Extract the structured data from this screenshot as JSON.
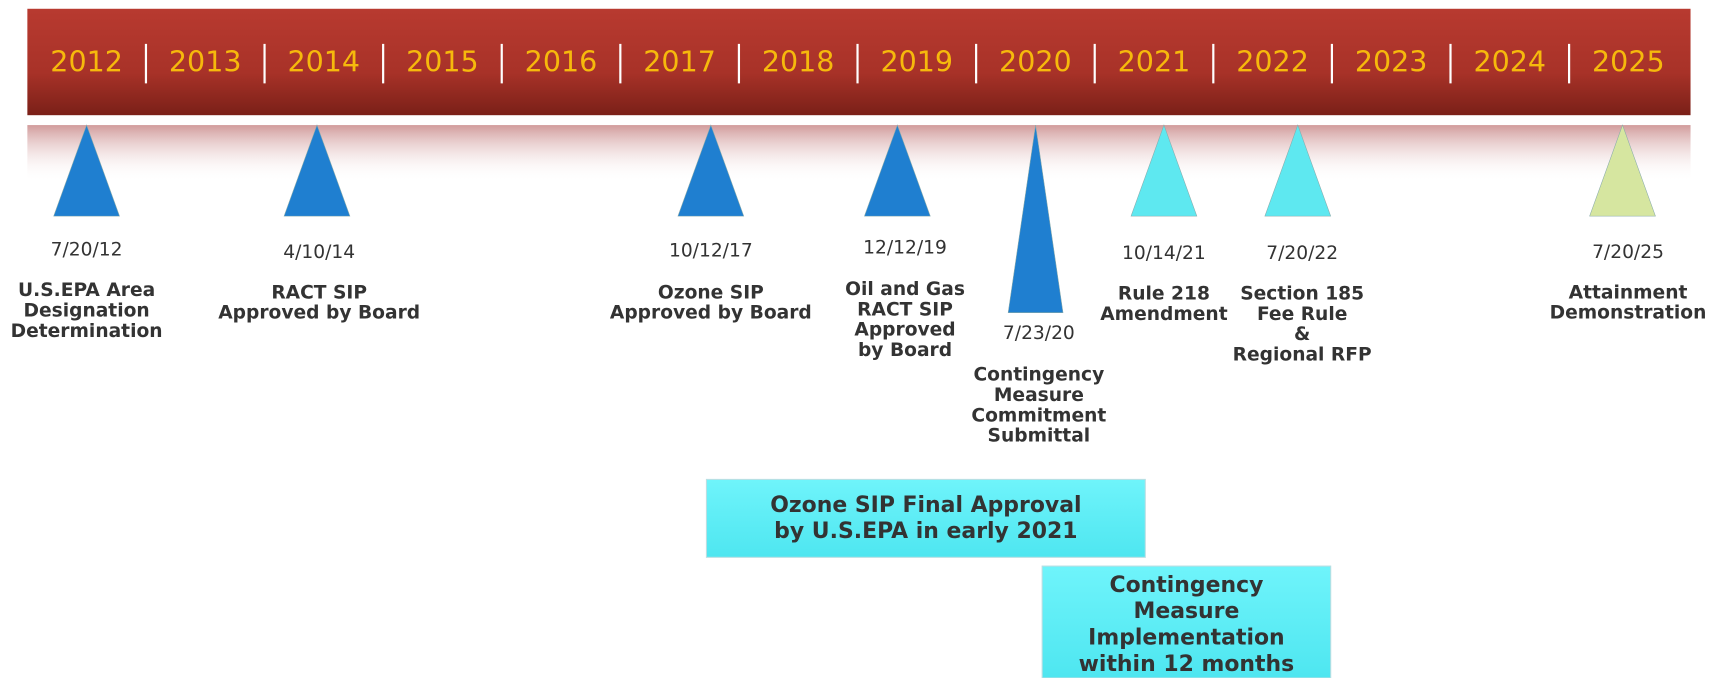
{
  "years": [
    "2012",
    "2013",
    "2014",
    "2015",
    "2016",
    "2017",
    "2018",
    "2019",
    "2020",
    "2021",
    "2022",
    "2023",
    "2024",
    "2025"
  ],
  "milestones": [
    {
      "date": "7/20/12",
      "label": [
        "U.S.EPA Area",
        "Designation",
        "Determination"
      ],
      "color": "#1f7fd0"
    },
    {
      "date": "4/10/14",
      "label": [
        "RACT SIP",
        "Approved by Board"
      ],
      "color": "#1f7fd0"
    },
    {
      "date": "10/12/17",
      "label": [
        "Ozone SIP",
        "Approved by Board"
      ],
      "color": "#1f7fd0"
    },
    {
      "date": "12/12/19",
      "label": [
        "Oil and Gas",
        "RACT SIP",
        "Approved",
        "by Board"
      ],
      "color": "#1f7fd0"
    },
    {
      "date": "7/23/20",
      "label": [
        "Contingency",
        "Measure",
        "Commitment",
        "Submittal"
      ],
      "color": "#1f7fd0"
    },
    {
      "date": "10/14/21",
      "label": [
        "Rule 218",
        "Amendment"
      ],
      "color": "#5ee8f0"
    },
    {
      "date": "7/20/22",
      "label": [
        "Section 185",
        "Fee Rule",
        "&",
        "Regional RFP"
      ],
      "color": "#5ee8f0"
    },
    {
      "date": "7/20/25",
      "label": [
        "Attainment",
        "Demonstration"
      ],
      "color": "#d6e6a0"
    }
  ],
  "boxes": [
    {
      "label": [
        "Ozone SIP Final Approval",
        "by U.S.EPA in early 2021"
      ]
    },
    {
      "label": [
        "Contingency",
        "Measure",
        "Implementation",
        "within 12 months"
      ]
    }
  ]
}
